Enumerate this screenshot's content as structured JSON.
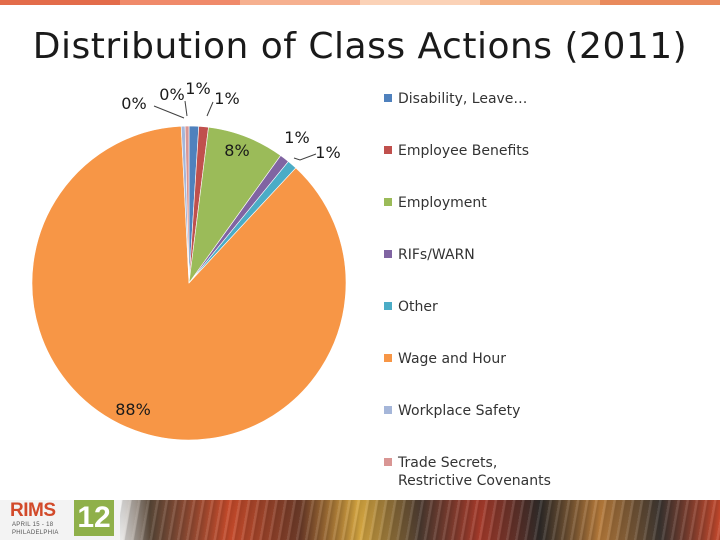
{
  "slide": {
    "title": "Distribution of Class Actions (2011)",
    "stripe_colors": [
      "#e36c4a",
      "#f08a6a",
      "#f6b08f",
      "#fbd2b7",
      "#f4b184",
      "#e98a5c"
    ]
  },
  "chart_data": {
    "type": "pie",
    "title": "Distribution of Class Actions (2011)",
    "legend_position": "right",
    "slices": [
      {
        "name": "Disability, Leave…",
        "value": 1,
        "label": "1%",
        "color": "#4f81bd"
      },
      {
        "name": "Employee Benefits",
        "value": 1,
        "label": "1%",
        "color": "#c0504d"
      },
      {
        "name": "Employment",
        "value": 8,
        "label": "8%",
        "color": "#9bbb59"
      },
      {
        "name": "RIFs/WARN",
        "value": 1,
        "label": "1%",
        "color": "#8064a2"
      },
      {
        "name": "Other",
        "value": 1,
        "label": "1%",
        "color": "#4bacc6"
      },
      {
        "name": "Wage and Hour",
        "value": 88,
        "label": "88%",
        "color": "#f79646"
      },
      {
        "name": "Workplace Safety",
        "value": 0.4,
        "label": "0%",
        "color": "#a5b6d9"
      },
      {
        "name": "Trade Secrets, Restrictive Covenants",
        "value": 0.4,
        "label": "0%",
        "color": "#d99694"
      }
    ]
  },
  "logo": {
    "word": "RIMS",
    "number": "12",
    "date": "APRIL 15 - 18",
    "city": "PHILADELPHIA"
  }
}
